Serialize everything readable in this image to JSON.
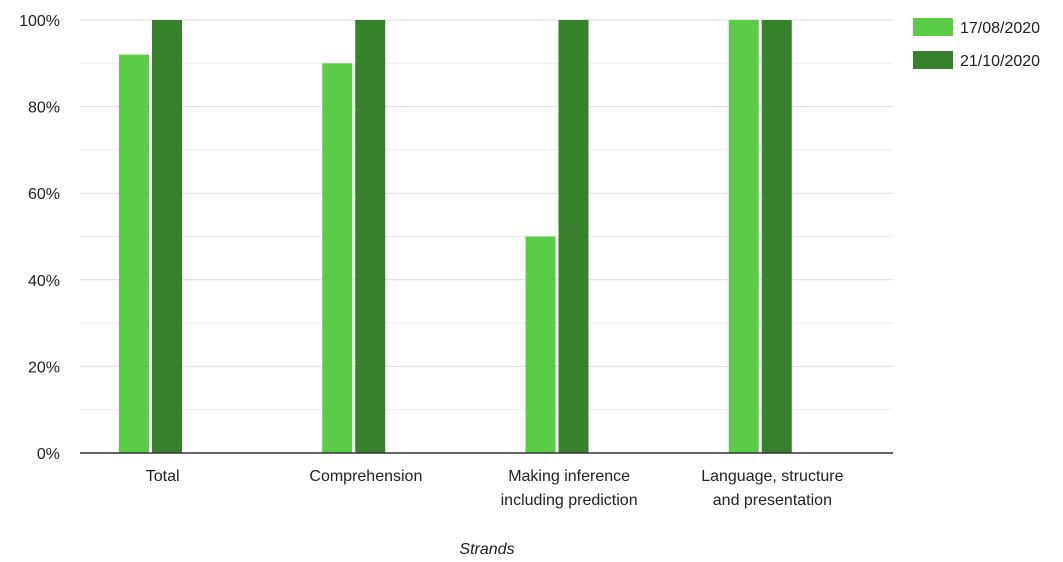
{
  "chart_data": {
    "type": "bar",
    "title": "",
    "xlabel": "Strands",
    "ylabel": "",
    "categories": [
      [
        "Total"
      ],
      [
        "Comprehension"
      ],
      [
        "Making inference",
        "including prediction"
      ],
      [
        "Language, structure",
        "and presentation"
      ]
    ],
    "series": [
      {
        "name": "17/08/2020",
        "values": [
          92,
          90,
          50,
          100
        ],
        "color": "#5bcc46"
      },
      {
        "name": "21/10/2020",
        "values": [
          100,
          100,
          100,
          100
        ],
        "color": "#37802c"
      }
    ],
    "ylim": [
      0,
      100
    ],
    "yticks": [
      "0%",
      "20%",
      "40%",
      "60%",
      "80%",
      "100%"
    ],
    "ytick_values": [
      0,
      20,
      40,
      60,
      80,
      100
    ],
    "grid": true,
    "legend_position": "top-right",
    "colors": {
      "gridline": "#dcdcdc",
      "minor_gridline": "#ececec",
      "axis": "#333333",
      "text": "#222222"
    }
  }
}
